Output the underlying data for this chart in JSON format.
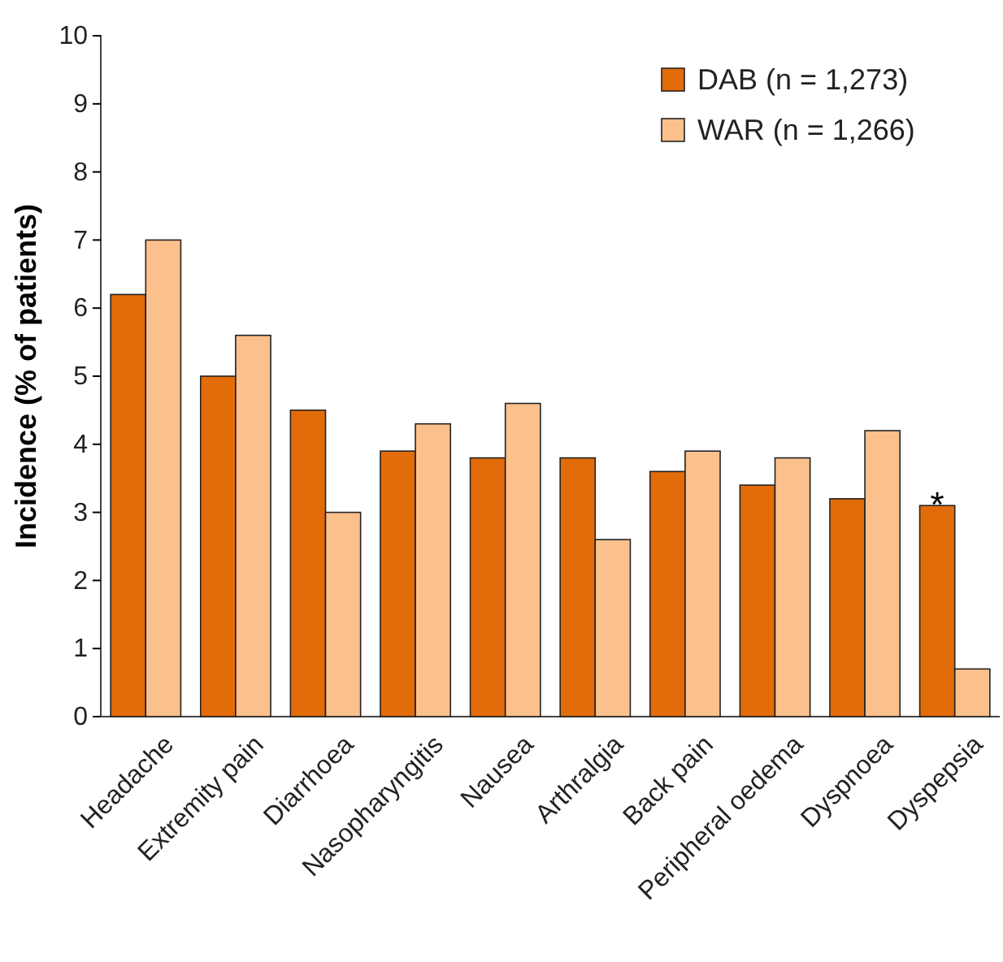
{
  "chart_data": {
    "type": "bar",
    "ylabel": "Incidence (% of patients)",
    "categories": [
      "Headache",
      "Extremity pain",
      "Diarrhoea",
      "Nasopharyngitis",
      "Nausea",
      "Arthralgia",
      "Back pain",
      "Peripheral oedema",
      "Dyspnoea",
      "Dyspepsia"
    ],
    "series": [
      {
        "name": "DAB (n = 1,273)",
        "color": "#e36c0a",
        "values": [
          6.2,
          5.0,
          4.5,
          3.9,
          3.8,
          3.8,
          3.6,
          3.4,
          3.2,
          3.1
        ]
      },
      {
        "name": "WAR (n = 1,266)",
        "color": "#fbc08c",
        "values": [
          7.0,
          5.6,
          3.0,
          4.3,
          4.6,
          2.6,
          3.9,
          3.8,
          4.2,
          0.7
        ]
      }
    ],
    "ylim": [
      0,
      10
    ],
    "yticks": [
      0,
      1,
      2,
      3,
      4,
      5,
      6,
      7,
      8,
      9,
      10
    ],
    "grid": false,
    "legend": "top right",
    "annotations": [
      "*"
    ]
  }
}
